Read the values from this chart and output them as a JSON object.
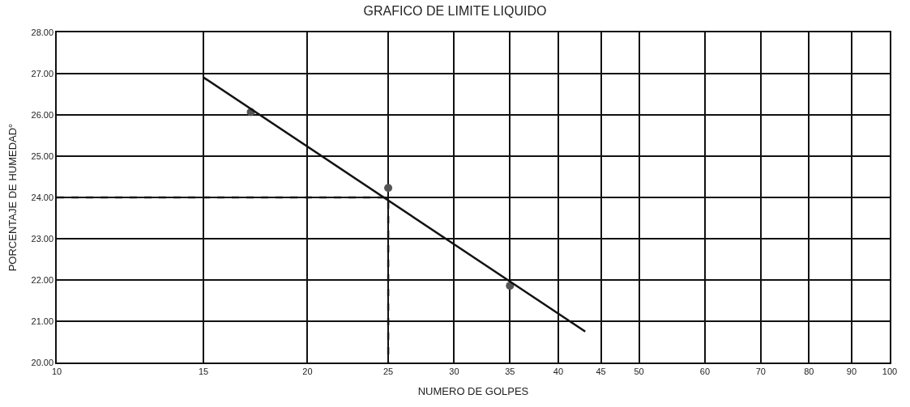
{
  "chart_data": {
    "type": "scatter",
    "title": "GRAFICO DE LIMITE LIQUIDO",
    "xlabel": "NUMERO DE GOLPES",
    "ylabel": "PORCENTAJE DE HUMEDAD°",
    "log": "x",
    "xlim": [
      10,
      100
    ],
    "xticks": [
      10,
      15,
      20,
      25,
      30,
      35,
      40,
      45,
      50,
      60,
      70,
      80,
      90,
      100
    ],
    "ylim": [
      20,
      28
    ],
    "yticks": [
      {
        "value": 20,
        "label": "20.00"
      },
      {
        "value": 21,
        "label": "21.00"
      },
      {
        "value": 22,
        "label": "22.00"
      },
      {
        "value": 23,
        "label": "23.00"
      },
      {
        "value": 24,
        "label": "24.00"
      },
      {
        "value": 25,
        "label": "25.00"
      },
      {
        "value": 26,
        "label": "26.00"
      },
      {
        "value": 27,
        "label": "27.00"
      },
      {
        "value": 28,
        "label": "28.00"
      }
    ],
    "grid": true,
    "series": [
      {
        "marker": "circle",
        "color": "#555555",
        "x": [
          17.1,
          25,
          35
        ],
        "values": [
          26.07,
          24.23,
          21.86
        ]
      },
      {
        "type": "line",
        "line_style": "solid",
        "color": "#111111",
        "x": [
          15,
          43.1
        ],
        "values": [
          26.91,
          20.75
        ]
      },
      {
        "type": "line",
        "line_style": "dashed",
        "color": "#111111",
        "x": [
          10,
          25,
          25
        ],
        "values": [
          24,
          24,
          20
        ]
      }
    ]
  }
}
